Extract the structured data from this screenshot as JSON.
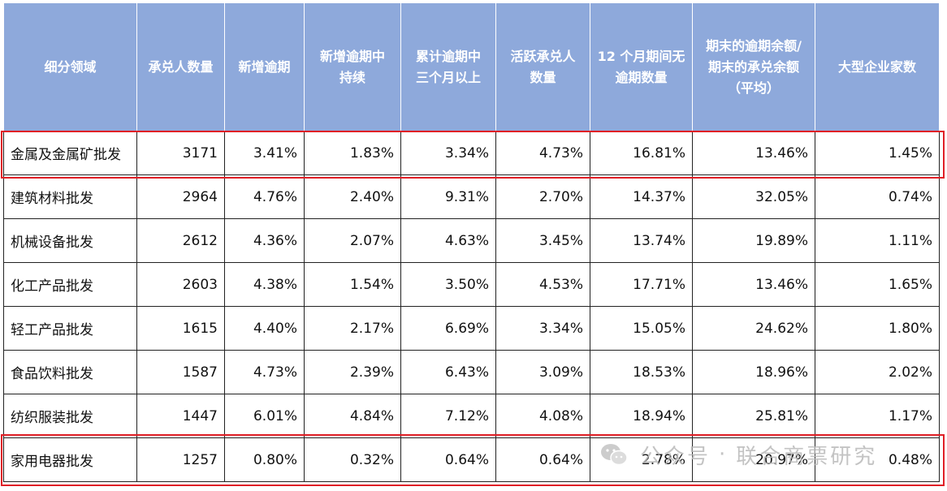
{
  "chart_data": {
    "type": "table",
    "columns": [
      {
        "lines": [
          "细分领域"
        ]
      },
      {
        "lines": [
          "承兑人数量"
        ]
      },
      {
        "lines": [
          "新增逾期"
        ]
      },
      {
        "lines": [
          "新增逾期中",
          "持续"
        ]
      },
      {
        "lines": [
          "累计逾期中",
          "三个月以上"
        ]
      },
      {
        "lines": [
          "活跃承兑人",
          "数量"
        ]
      },
      {
        "lines": [
          "12 个月期间无",
          "逾期数量"
        ]
      },
      {
        "lines": [
          "期末的逾期余额/",
          "期末的承兑余额",
          "（平均）"
        ]
      },
      {
        "lines": [
          "大型企业家数"
        ]
      }
    ],
    "rows": [
      [
        "金属及金属矿批发",
        "3171",
        "3.41%",
        "1.83%",
        "3.34%",
        "4.73%",
        "16.81%",
        "13.46%",
        "1.45%"
      ],
      [
        "建筑材料批发",
        "2964",
        "4.76%",
        "2.40%",
        "9.31%",
        "2.70%",
        "14.37%",
        "32.05%",
        "0.74%"
      ],
      [
        "机械设备批发",
        "2612",
        "4.36%",
        "2.07%",
        "4.63%",
        "3.45%",
        "13.74%",
        "19.89%",
        "1.11%"
      ],
      [
        "化工产品批发",
        "2603",
        "4.38%",
        "1.54%",
        "3.50%",
        "4.53%",
        "17.71%",
        "13.46%",
        "1.65%"
      ],
      [
        "轻工产品批发",
        "1615",
        "4.40%",
        "2.17%",
        "6.69%",
        "3.34%",
        "15.05%",
        "24.62%",
        "1.80%"
      ],
      [
        "食品饮料批发",
        "1587",
        "4.73%",
        "2.39%",
        "6.43%",
        "3.09%",
        "18.53%",
        "18.96%",
        "2.02%"
      ],
      [
        "纺织服装批发",
        "1447",
        "6.01%",
        "4.84%",
        "7.12%",
        "4.08%",
        "18.94%",
        "25.81%",
        "1.17%"
      ],
      [
        "家用电器批发",
        "1257",
        "0.80%",
        "0.32%",
        "0.64%",
        "0.64%",
        "2.78%",
        "20.97%",
        "0.48%"
      ]
    ],
    "highlighted_rows": [
      "金属及金属矿批发",
      "家用电器批发"
    ],
    "header_color": "#8ea9db",
    "highlight_color": "#e01f26"
  },
  "watermark": {
    "text": "公众号",
    "separator": "·",
    "name": "联合商票研究",
    "icon": "wechat-icon"
  }
}
